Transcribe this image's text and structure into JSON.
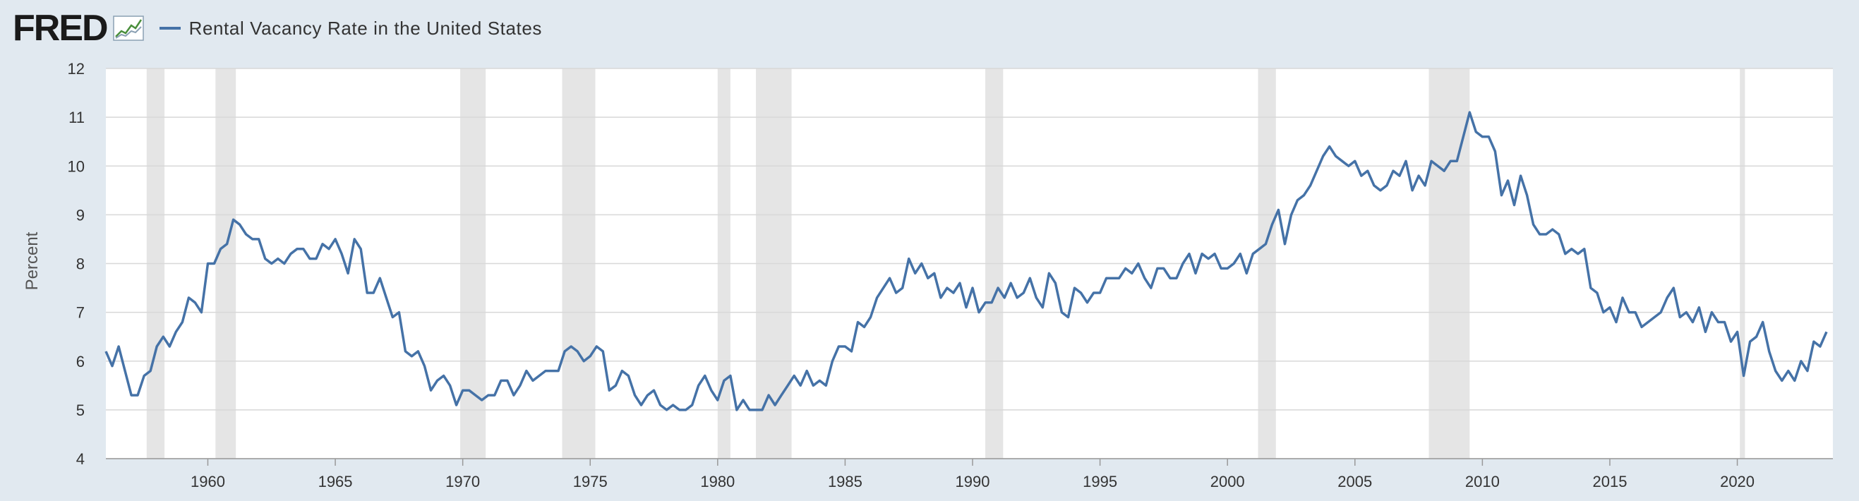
{
  "header": {
    "logo": "FRED",
    "logo_icon": "chart-line-icon",
    "series_title": "Rental Vacancy Rate in the United States"
  },
  "colors": {
    "line": "#4572a7",
    "recession": "#e5e5e5",
    "grid": "#d8d8d8",
    "plot_bg": "#ffffff",
    "page_bg": "#e1e9f0"
  },
  "chart_data": {
    "type": "line",
    "title": "Rental Vacancy Rate in the United States",
    "ylabel": "Percent",
    "xlabel": "",
    "xlim": [
      1956,
      2023.75
    ],
    "ylim": [
      4,
      12
    ],
    "yticks": [
      4,
      5,
      6,
      7,
      8,
      9,
      10,
      11,
      12
    ],
    "xticks": [
      1960,
      1965,
      1970,
      1975,
      1980,
      1985,
      1990,
      1995,
      2000,
      2005,
      2010,
      2015,
      2020
    ],
    "grid": true,
    "recessions": [
      [
        1957.6,
        1958.3
      ],
      [
        1960.3,
        1961.1
      ],
      [
        1969.9,
        1970.9
      ],
      [
        1973.9,
        1975.2
      ],
      [
        1980.0,
        1980.5
      ],
      [
        1981.5,
        1982.9
      ],
      [
        1990.5,
        1991.2
      ],
      [
        2001.2,
        2001.9
      ],
      [
        2007.9,
        2009.5
      ],
      [
        2020.1,
        2020.3
      ]
    ],
    "series": [
      {
        "name": "Rental Vacancy Rate in the United States",
        "points": [
          [
            1956.0,
            6.2
          ],
          [
            1956.25,
            5.9
          ],
          [
            1956.5,
            6.3
          ],
          [
            1956.75,
            5.8
          ],
          [
            1957.0,
            5.3
          ],
          [
            1957.25,
            5.3
          ],
          [
            1957.5,
            5.7
          ],
          [
            1957.75,
            5.8
          ],
          [
            1958.0,
            6.3
          ],
          [
            1958.25,
            6.5
          ],
          [
            1958.5,
            6.3
          ],
          [
            1958.75,
            6.6
          ],
          [
            1959.0,
            6.8
          ],
          [
            1959.25,
            7.3
          ],
          [
            1959.5,
            7.2
          ],
          [
            1959.75,
            7.0
          ],
          [
            1960.0,
            8.0
          ],
          [
            1960.25,
            8.0
          ],
          [
            1960.5,
            8.3
          ],
          [
            1960.75,
            8.4
          ],
          [
            1961.0,
            8.9
          ],
          [
            1961.25,
            8.8
          ],
          [
            1961.5,
            8.6
          ],
          [
            1961.75,
            8.5
          ],
          [
            1962.0,
            8.5
          ],
          [
            1962.25,
            8.1
          ],
          [
            1962.5,
            8.0
          ],
          [
            1962.75,
            8.1
          ],
          [
            1963.0,
            8.0
          ],
          [
            1963.25,
            8.2
          ],
          [
            1963.5,
            8.3
          ],
          [
            1963.75,
            8.3
          ],
          [
            1964.0,
            8.1
          ],
          [
            1964.25,
            8.1
          ],
          [
            1964.5,
            8.4
          ],
          [
            1964.75,
            8.3
          ],
          [
            1965.0,
            8.5
          ],
          [
            1965.25,
            8.2
          ],
          [
            1965.5,
            7.8
          ],
          [
            1965.75,
            8.5
          ],
          [
            1966.0,
            8.3
          ],
          [
            1966.25,
            7.4
          ],
          [
            1966.5,
            7.4
          ],
          [
            1966.75,
            7.7
          ],
          [
            1967.0,
            7.3
          ],
          [
            1967.25,
            6.9
          ],
          [
            1967.5,
            7.0
          ],
          [
            1967.75,
            6.2
          ],
          [
            1968.0,
            6.1
          ],
          [
            1968.25,
            6.2
          ],
          [
            1968.5,
            5.9
          ],
          [
            1968.75,
            5.4
          ],
          [
            1969.0,
            5.6
          ],
          [
            1969.25,
            5.7
          ],
          [
            1969.5,
            5.5
          ],
          [
            1969.75,
            5.1
          ],
          [
            1970.0,
            5.4
          ],
          [
            1970.25,
            5.4
          ],
          [
            1970.5,
            5.3
          ],
          [
            1970.75,
            5.2
          ],
          [
            1971.0,
            5.3
          ],
          [
            1971.25,
            5.3
          ],
          [
            1971.5,
            5.6
          ],
          [
            1971.75,
            5.6
          ],
          [
            1972.0,
            5.3
          ],
          [
            1972.25,
            5.5
          ],
          [
            1972.5,
            5.8
          ],
          [
            1972.75,
            5.6
          ],
          [
            1973.0,
            5.7
          ],
          [
            1973.25,
            5.8
          ],
          [
            1973.5,
            5.8
          ],
          [
            1973.75,
            5.8
          ],
          [
            1974.0,
            6.2
          ],
          [
            1974.25,
            6.3
          ],
          [
            1974.5,
            6.2
          ],
          [
            1974.75,
            6.0
          ],
          [
            1975.0,
            6.1
          ],
          [
            1975.25,
            6.3
          ],
          [
            1975.5,
            6.2
          ],
          [
            1975.75,
            5.4
          ],
          [
            1976.0,
            5.5
          ],
          [
            1976.25,
            5.8
          ],
          [
            1976.5,
            5.7
          ],
          [
            1976.75,
            5.3
          ],
          [
            1977.0,
            5.1
          ],
          [
            1977.25,
            5.3
          ],
          [
            1977.5,
            5.4
          ],
          [
            1977.75,
            5.1
          ],
          [
            1978.0,
            5.0
          ],
          [
            1978.25,
            5.1
          ],
          [
            1978.5,
            5.0
          ],
          [
            1978.75,
            5.0
          ],
          [
            1979.0,
            5.1
          ],
          [
            1979.25,
            5.5
          ],
          [
            1979.5,
            5.7
          ],
          [
            1979.75,
            5.4
          ],
          [
            1980.0,
            5.2
          ],
          [
            1980.25,
            5.6
          ],
          [
            1980.5,
            5.7
          ],
          [
            1980.75,
            5.0
          ],
          [
            1981.0,
            5.2
          ],
          [
            1981.25,
            5.0
          ],
          [
            1981.5,
            5.0
          ],
          [
            1981.75,
            5.0
          ],
          [
            1982.0,
            5.3
          ],
          [
            1982.25,
            5.1
          ],
          [
            1982.5,
            5.3
          ],
          [
            1982.75,
            5.5
          ],
          [
            1983.0,
            5.7
          ],
          [
            1983.25,
            5.5
          ],
          [
            1983.5,
            5.8
          ],
          [
            1983.75,
            5.5
          ],
          [
            1984.0,
            5.6
          ],
          [
            1984.25,
            5.5
          ],
          [
            1984.5,
            6.0
          ],
          [
            1984.75,
            6.3
          ],
          [
            1985.0,
            6.3
          ],
          [
            1985.25,
            6.2
          ],
          [
            1985.5,
            6.8
          ],
          [
            1985.75,
            6.7
          ],
          [
            1986.0,
            6.9
          ],
          [
            1986.25,
            7.3
          ],
          [
            1986.5,
            7.5
          ],
          [
            1986.75,
            7.7
          ],
          [
            1987.0,
            7.4
          ],
          [
            1987.25,
            7.5
          ],
          [
            1987.5,
            8.1
          ],
          [
            1987.75,
            7.8
          ],
          [
            1988.0,
            8.0
          ],
          [
            1988.25,
            7.7
          ],
          [
            1988.5,
            7.8
          ],
          [
            1988.75,
            7.3
          ],
          [
            1989.0,
            7.5
          ],
          [
            1989.25,
            7.4
          ],
          [
            1989.5,
            7.6
          ],
          [
            1989.75,
            7.1
          ],
          [
            1990.0,
            7.5
          ],
          [
            1990.25,
            7.0
          ],
          [
            1990.5,
            7.2
          ],
          [
            1990.75,
            7.2
          ],
          [
            1991.0,
            7.5
          ],
          [
            1991.25,
            7.3
          ],
          [
            1991.5,
            7.6
          ],
          [
            1991.75,
            7.3
          ],
          [
            1992.0,
            7.4
          ],
          [
            1992.25,
            7.7
          ],
          [
            1992.5,
            7.3
          ],
          [
            1992.75,
            7.1
          ],
          [
            1993.0,
            7.8
          ],
          [
            1993.25,
            7.6
          ],
          [
            1993.5,
            7.0
          ],
          [
            1993.75,
            6.9
          ],
          [
            1994.0,
            7.5
          ],
          [
            1994.25,
            7.4
          ],
          [
            1994.5,
            7.2
          ],
          [
            1994.75,
            7.4
          ],
          [
            1995.0,
            7.4
          ],
          [
            1995.25,
            7.7
          ],
          [
            1995.5,
            7.7
          ],
          [
            1995.75,
            7.7
          ],
          [
            1996.0,
            7.9
          ],
          [
            1996.25,
            7.8
          ],
          [
            1996.5,
            8.0
          ],
          [
            1996.75,
            7.7
          ],
          [
            1997.0,
            7.5
          ],
          [
            1997.25,
            7.9
          ],
          [
            1997.5,
            7.9
          ],
          [
            1997.75,
            7.7
          ],
          [
            1998.0,
            7.7
          ],
          [
            1998.25,
            8.0
          ],
          [
            1998.5,
            8.2
          ],
          [
            1998.75,
            7.8
          ],
          [
            1999.0,
            8.2
          ],
          [
            1999.25,
            8.1
          ],
          [
            1999.5,
            8.2
          ],
          [
            1999.75,
            7.9
          ],
          [
            2000.0,
            7.9
          ],
          [
            2000.25,
            8.0
          ],
          [
            2000.5,
            8.2
          ],
          [
            2000.75,
            7.8
          ],
          [
            2001.0,
            8.2
          ],
          [
            2001.25,
            8.3
          ],
          [
            2001.5,
            8.4
          ],
          [
            2001.75,
            8.8
          ],
          [
            2002.0,
            9.1
          ],
          [
            2002.25,
            8.4
          ],
          [
            2002.5,
            9.0
          ],
          [
            2002.75,
            9.3
          ],
          [
            2003.0,
            9.4
          ],
          [
            2003.25,
            9.6
          ],
          [
            2003.5,
            9.9
          ],
          [
            2003.75,
            10.2
          ],
          [
            2004.0,
            10.4
          ],
          [
            2004.25,
            10.2
          ],
          [
            2004.5,
            10.1
          ],
          [
            2004.75,
            10.0
          ],
          [
            2005.0,
            10.1
          ],
          [
            2005.25,
            9.8
          ],
          [
            2005.5,
            9.9
          ],
          [
            2005.75,
            9.6
          ],
          [
            2006.0,
            9.5
          ],
          [
            2006.25,
            9.6
          ],
          [
            2006.5,
            9.9
          ],
          [
            2006.75,
            9.8
          ],
          [
            2007.0,
            10.1
          ],
          [
            2007.25,
            9.5
          ],
          [
            2007.5,
            9.8
          ],
          [
            2007.75,
            9.6
          ],
          [
            2008.0,
            10.1
          ],
          [
            2008.25,
            10.0
          ],
          [
            2008.5,
            9.9
          ],
          [
            2008.75,
            10.1
          ],
          [
            2009.0,
            10.1
          ],
          [
            2009.25,
            10.6
          ],
          [
            2009.5,
            11.1
          ],
          [
            2009.75,
            10.7
          ],
          [
            2010.0,
            10.6
          ],
          [
            2010.25,
            10.6
          ],
          [
            2010.5,
            10.3
          ],
          [
            2010.75,
            9.4
          ],
          [
            2011.0,
            9.7
          ],
          [
            2011.25,
            9.2
          ],
          [
            2011.5,
            9.8
          ],
          [
            2011.75,
            9.4
          ],
          [
            2012.0,
            8.8
          ],
          [
            2012.25,
            8.6
          ],
          [
            2012.5,
            8.6
          ],
          [
            2012.75,
            8.7
          ],
          [
            2013.0,
            8.6
          ],
          [
            2013.25,
            8.2
          ],
          [
            2013.5,
            8.3
          ],
          [
            2013.75,
            8.2
          ],
          [
            2014.0,
            8.3
          ],
          [
            2014.25,
            7.5
          ],
          [
            2014.5,
            7.4
          ],
          [
            2014.75,
            7.0
          ],
          [
            2015.0,
            7.1
          ],
          [
            2015.25,
            6.8
          ],
          [
            2015.5,
            7.3
          ],
          [
            2015.75,
            7.0
          ],
          [
            2016.0,
            7.0
          ],
          [
            2016.25,
            6.7
          ],
          [
            2016.5,
            6.8
          ],
          [
            2016.75,
            6.9
          ],
          [
            2017.0,
            7.0
          ],
          [
            2017.25,
            7.3
          ],
          [
            2017.5,
            7.5
          ],
          [
            2017.75,
            6.9
          ],
          [
            2018.0,
            7.0
          ],
          [
            2018.25,
            6.8
          ],
          [
            2018.5,
            7.1
          ],
          [
            2018.75,
            6.6
          ],
          [
            2019.0,
            7.0
          ],
          [
            2019.25,
            6.8
          ],
          [
            2019.5,
            6.8
          ],
          [
            2019.75,
            6.4
          ],
          [
            2020.0,
            6.6
          ],
          [
            2020.25,
            5.7
          ],
          [
            2020.5,
            6.4
          ],
          [
            2020.75,
            6.5
          ],
          [
            2021.0,
            6.8
          ],
          [
            2021.25,
            6.2
          ],
          [
            2021.5,
            5.8
          ],
          [
            2021.75,
            5.6
          ],
          [
            2022.0,
            5.8
          ],
          [
            2022.25,
            5.6
          ],
          [
            2022.5,
            6.0
          ],
          [
            2022.75,
            5.8
          ],
          [
            2023.0,
            6.4
          ],
          [
            2023.25,
            6.3
          ],
          [
            2023.5,
            6.6
          ]
        ]
      }
    ]
  }
}
